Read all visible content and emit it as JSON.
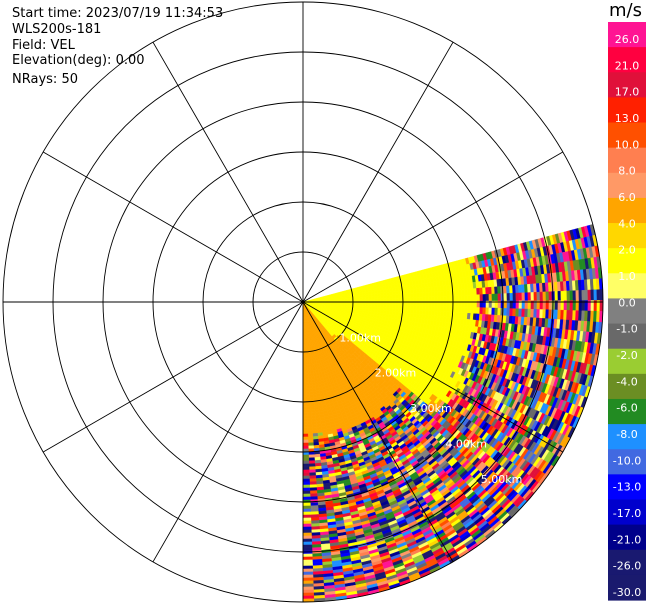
{
  "info": {
    "start_time_label": "Start time:",
    "start_time": "2023/07/19 11:34:53",
    "instrument": "WLS200s-181",
    "field_label": "Field:",
    "field": "VEL",
    "elevation_label": "Elevation(deg):",
    "elevation": "0.00",
    "nrays_label": "NRays:",
    "nrays": "50"
  },
  "colors": {
    "range_ring": "#000000",
    "spoke": "#000000",
    "range_label": "#ffffff",
    "near_field": "#ffff00",
    "mid_field": "#ffa500",
    "noise_gray": "#808080"
  },
  "chart_data": {
    "type": "heatmap",
    "projection": "polar",
    "field": "VEL",
    "units": "m/s",
    "scan_sector_azimuth_deg": [
      75,
      180
    ],
    "range_rings_km": [
      1,
      2,
      3,
      4,
      5,
      6
    ],
    "range_labels": [
      "1.00km",
      "2.00km",
      "3.00km",
      "4.00km",
      "5.00km"
    ],
    "range_label_azimuth_deg": 135,
    "spokes_azimuth_deg": [
      0,
      30,
      60,
      90,
      120,
      150,
      180,
      210,
      240,
      270,
      300,
      330
    ],
    "max_range_km": 6.0,
    "colorbar": {
      "title": "m/s",
      "ticks": [
        "26.0",
        "21.0",
        "17.0",
        "13.0",
        "10.0",
        "8.0",
        "6.0",
        "4.0",
        "2.0",
        "1.0",
        "0.0",
        "-1.0",
        "-2.0",
        "-4.0",
        "-6.0",
        "-8.0",
        "-10.0",
        "-13.0",
        "-17.0",
        "-21.0",
        "-26.0",
        "-30.0"
      ],
      "colors": [
        "#ff1493",
        "#ff0040",
        "#e0103a",
        "#ff2000",
        "#ff5000",
        "#ff7f50",
        "#ff9966",
        "#ffa500",
        "#ffd700",
        "#ffff00",
        "#ffff66",
        "#808080",
        "#696969",
        "#9acd32",
        "#6b8e23",
        "#228b22",
        "#1e90ff",
        "#4169e1",
        "#0000ff",
        "#0000cd",
        "#00008b",
        "#191970",
        "#1a1a6e"
      ]
    }
  }
}
